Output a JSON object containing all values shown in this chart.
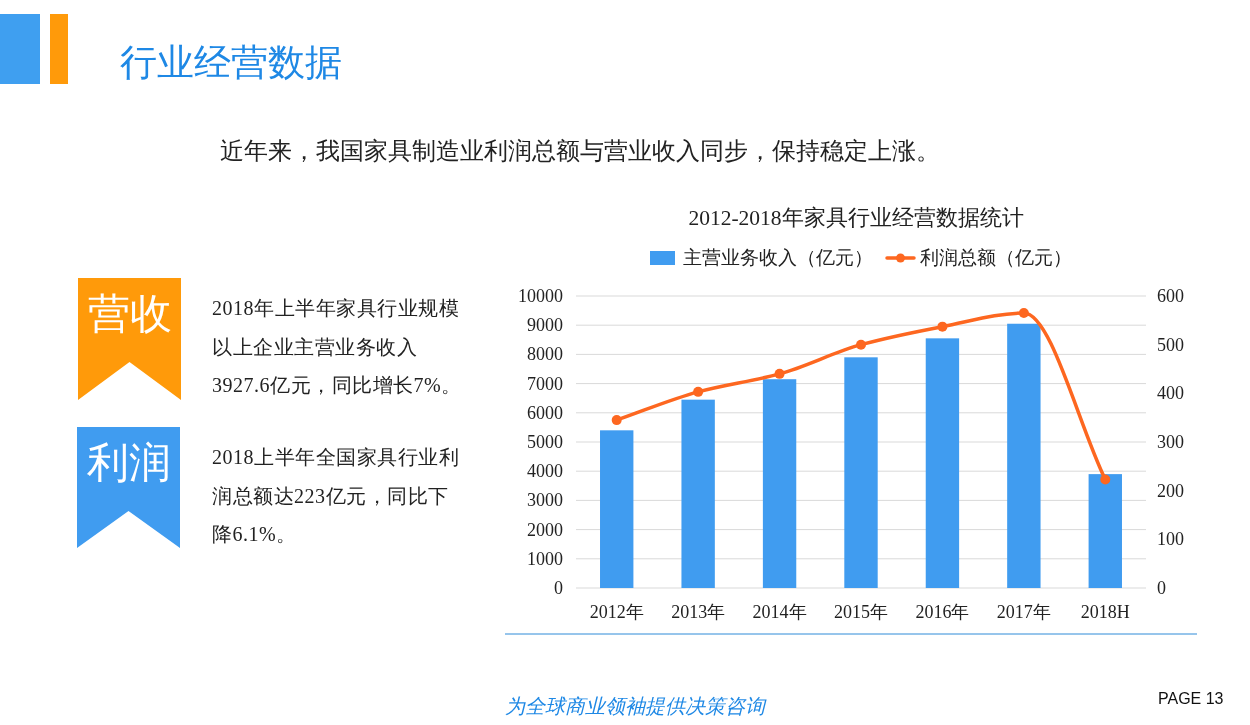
{
  "chart_data": {
    "type": "bar",
    "title": "2012-2018年家具行业经营数据统计",
    "categories": [
      "2012年",
      "2013年",
      "2014年",
      "2015年",
      "2016年",
      "2017年",
      "2018H"
    ],
    "series": [
      {
        "name": "主营业务收入（亿元）",
        "color": "#409cf0",
        "values": [
          5400,
          6450,
          7150,
          7900,
          8550,
          9050,
          3900
        ]
      },
      {
        "name": "利润总额（亿元）",
        "type": "line",
        "axis": "y2",
        "color": "#fd6720",
        "marker": "circle",
        "values": [
          345,
          403,
          440,
          500,
          537,
          565,
          223
        ]
      }
    ],
    "ylim": [
      0,
      10000
    ],
    "yticks": [
      0,
      1000,
      2000,
      3000,
      4000,
      5000,
      6000,
      7000,
      8000,
      9000,
      10000
    ],
    "y2lim": [
      0,
      600
    ],
    "y2ticks": [
      0,
      100,
      200,
      300,
      400,
      500,
      600
    ],
    "grid": "y",
    "legend": "top",
    "annotations": [
      "行业经营数据",
      "近年来，我国家具制造业利润总额与营业收入同步，保持稳定上涨。",
      "营收",
      "2018年上半年家具行业规模以上企业主营业务收入3927.6亿元，同比增长7%。",
      "利润",
      "2018上半年全国家具行业利润总额达223亿元，同比下降6.1%。",
      "为全球商业领袖提供决策咨询",
      "PAGE 13"
    ]
  }
}
